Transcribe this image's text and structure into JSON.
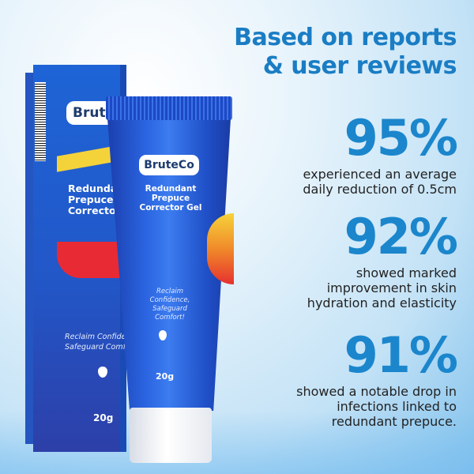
{
  "heading": {
    "line1": "Based on reports",
    "line2": "& user reviews"
  },
  "stats": [
    {
      "value": "95%",
      "lines": [
        "experienced an average",
        "daily reduction of 0.5cm"
      ]
    },
    {
      "value": "92%",
      "lines": [
        "showed marked",
        "improvement in skin",
        "hydration and elasticity"
      ]
    },
    {
      "value": "91%",
      "lines": [
        "showed a notable drop in",
        "infections linked to",
        "redundant prepuce."
      ]
    }
  ],
  "product": {
    "box": {
      "brand": "Brute",
      "title": [
        "Redunda",
        "Prepuce",
        "Corrector"
      ],
      "slogan": [
        "Reclaim Confide",
        "Safeguard Comf"
      ],
      "weight": "20g"
    },
    "tube": {
      "brand": "BruteCo",
      "title": [
        "Redundant",
        "Prepuce",
        "Corrector Gel"
      ],
      "slogan": [
        "Reclaim",
        "Confidence,",
        "Safeguard",
        "Comfort!"
      ],
      "weight": "20g"
    }
  },
  "colors": {
    "heading": "#1a7dc4",
    "stat": "#1b86cc",
    "product_blue": "#2257c8",
    "accent_red": "#e82a35",
    "accent_yellow": "#f4d23a"
  }
}
